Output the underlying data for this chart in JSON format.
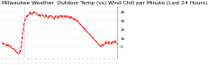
{
  "title": "Milwaukee Weather  Outdoor Temp (vs) Wind Chill per Minute (Last 24 Hours)",
  "line_color": "#ff0000",
  "bg_color": "#ffffff",
  "grid_color": "#bbbbbb",
  "vline_x": 28,
  "ylim": [
    -8,
    52
  ],
  "yticks": [
    5,
    15,
    25,
    35,
    45
  ],
  "y_values": [
    10,
    9,
    9,
    8,
    8,
    7,
    7,
    8,
    7,
    7,
    6,
    5,
    4,
    4,
    3,
    2,
    1,
    0,
    -1,
    -2,
    -3,
    -2,
    -1,
    2,
    8,
    16,
    24,
    30,
    35,
    38,
    40,
    41,
    42,
    43,
    44,
    45,
    44,
    43,
    44,
    45,
    46,
    45,
    44,
    43,
    42,
    43,
    42,
    41,
    42,
    43,
    42,
    41,
    40,
    41,
    42,
    41,
    40,
    39,
    40,
    41,
    42,
    41,
    40,
    39,
    38,
    39,
    40,
    41,
    40,
    39,
    40,
    41,
    42,
    41,
    40,
    41,
    40,
    41,
    40,
    41,
    40,
    41,
    40,
    39,
    40,
    39,
    40,
    39,
    38,
    37,
    38,
    37,
    36,
    35,
    34,
    33,
    32,
    31,
    30,
    29,
    28,
    27,
    26,
    25,
    24,
    23,
    22,
    21,
    20,
    19,
    18,
    17,
    16,
    15,
    14,
    13,
    12,
    11,
    10,
    9,
    8,
    7,
    6,
    7,
    8,
    7,
    8,
    9,
    10,
    11,
    10,
    9,
    10,
    11,
    10,
    9,
    10,
    11,
    10,
    11,
    12,
    11,
    10,
    9
  ],
  "title_fontsize": 4.2,
  "tick_fontsize": 3.2,
  "linewidth": 0.7,
  "markersize": 1.2,
  "num_xticks": 28
}
